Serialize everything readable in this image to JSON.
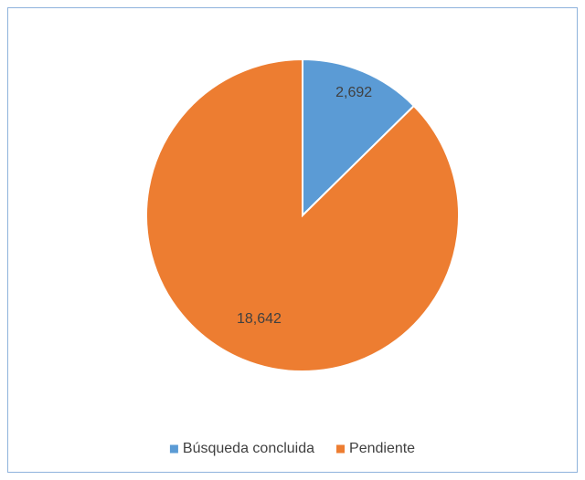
{
  "chart_data": {
    "type": "pie",
    "categories": [
      "Búsqueda concluida",
      "Pendiente"
    ],
    "values": [
      2692,
      18642
    ],
    "value_labels": [
      "2,692",
      "18,642"
    ],
    "colors": [
      "#5b9bd5",
      "#ed7d31"
    ],
    "legend": "bottom"
  }
}
